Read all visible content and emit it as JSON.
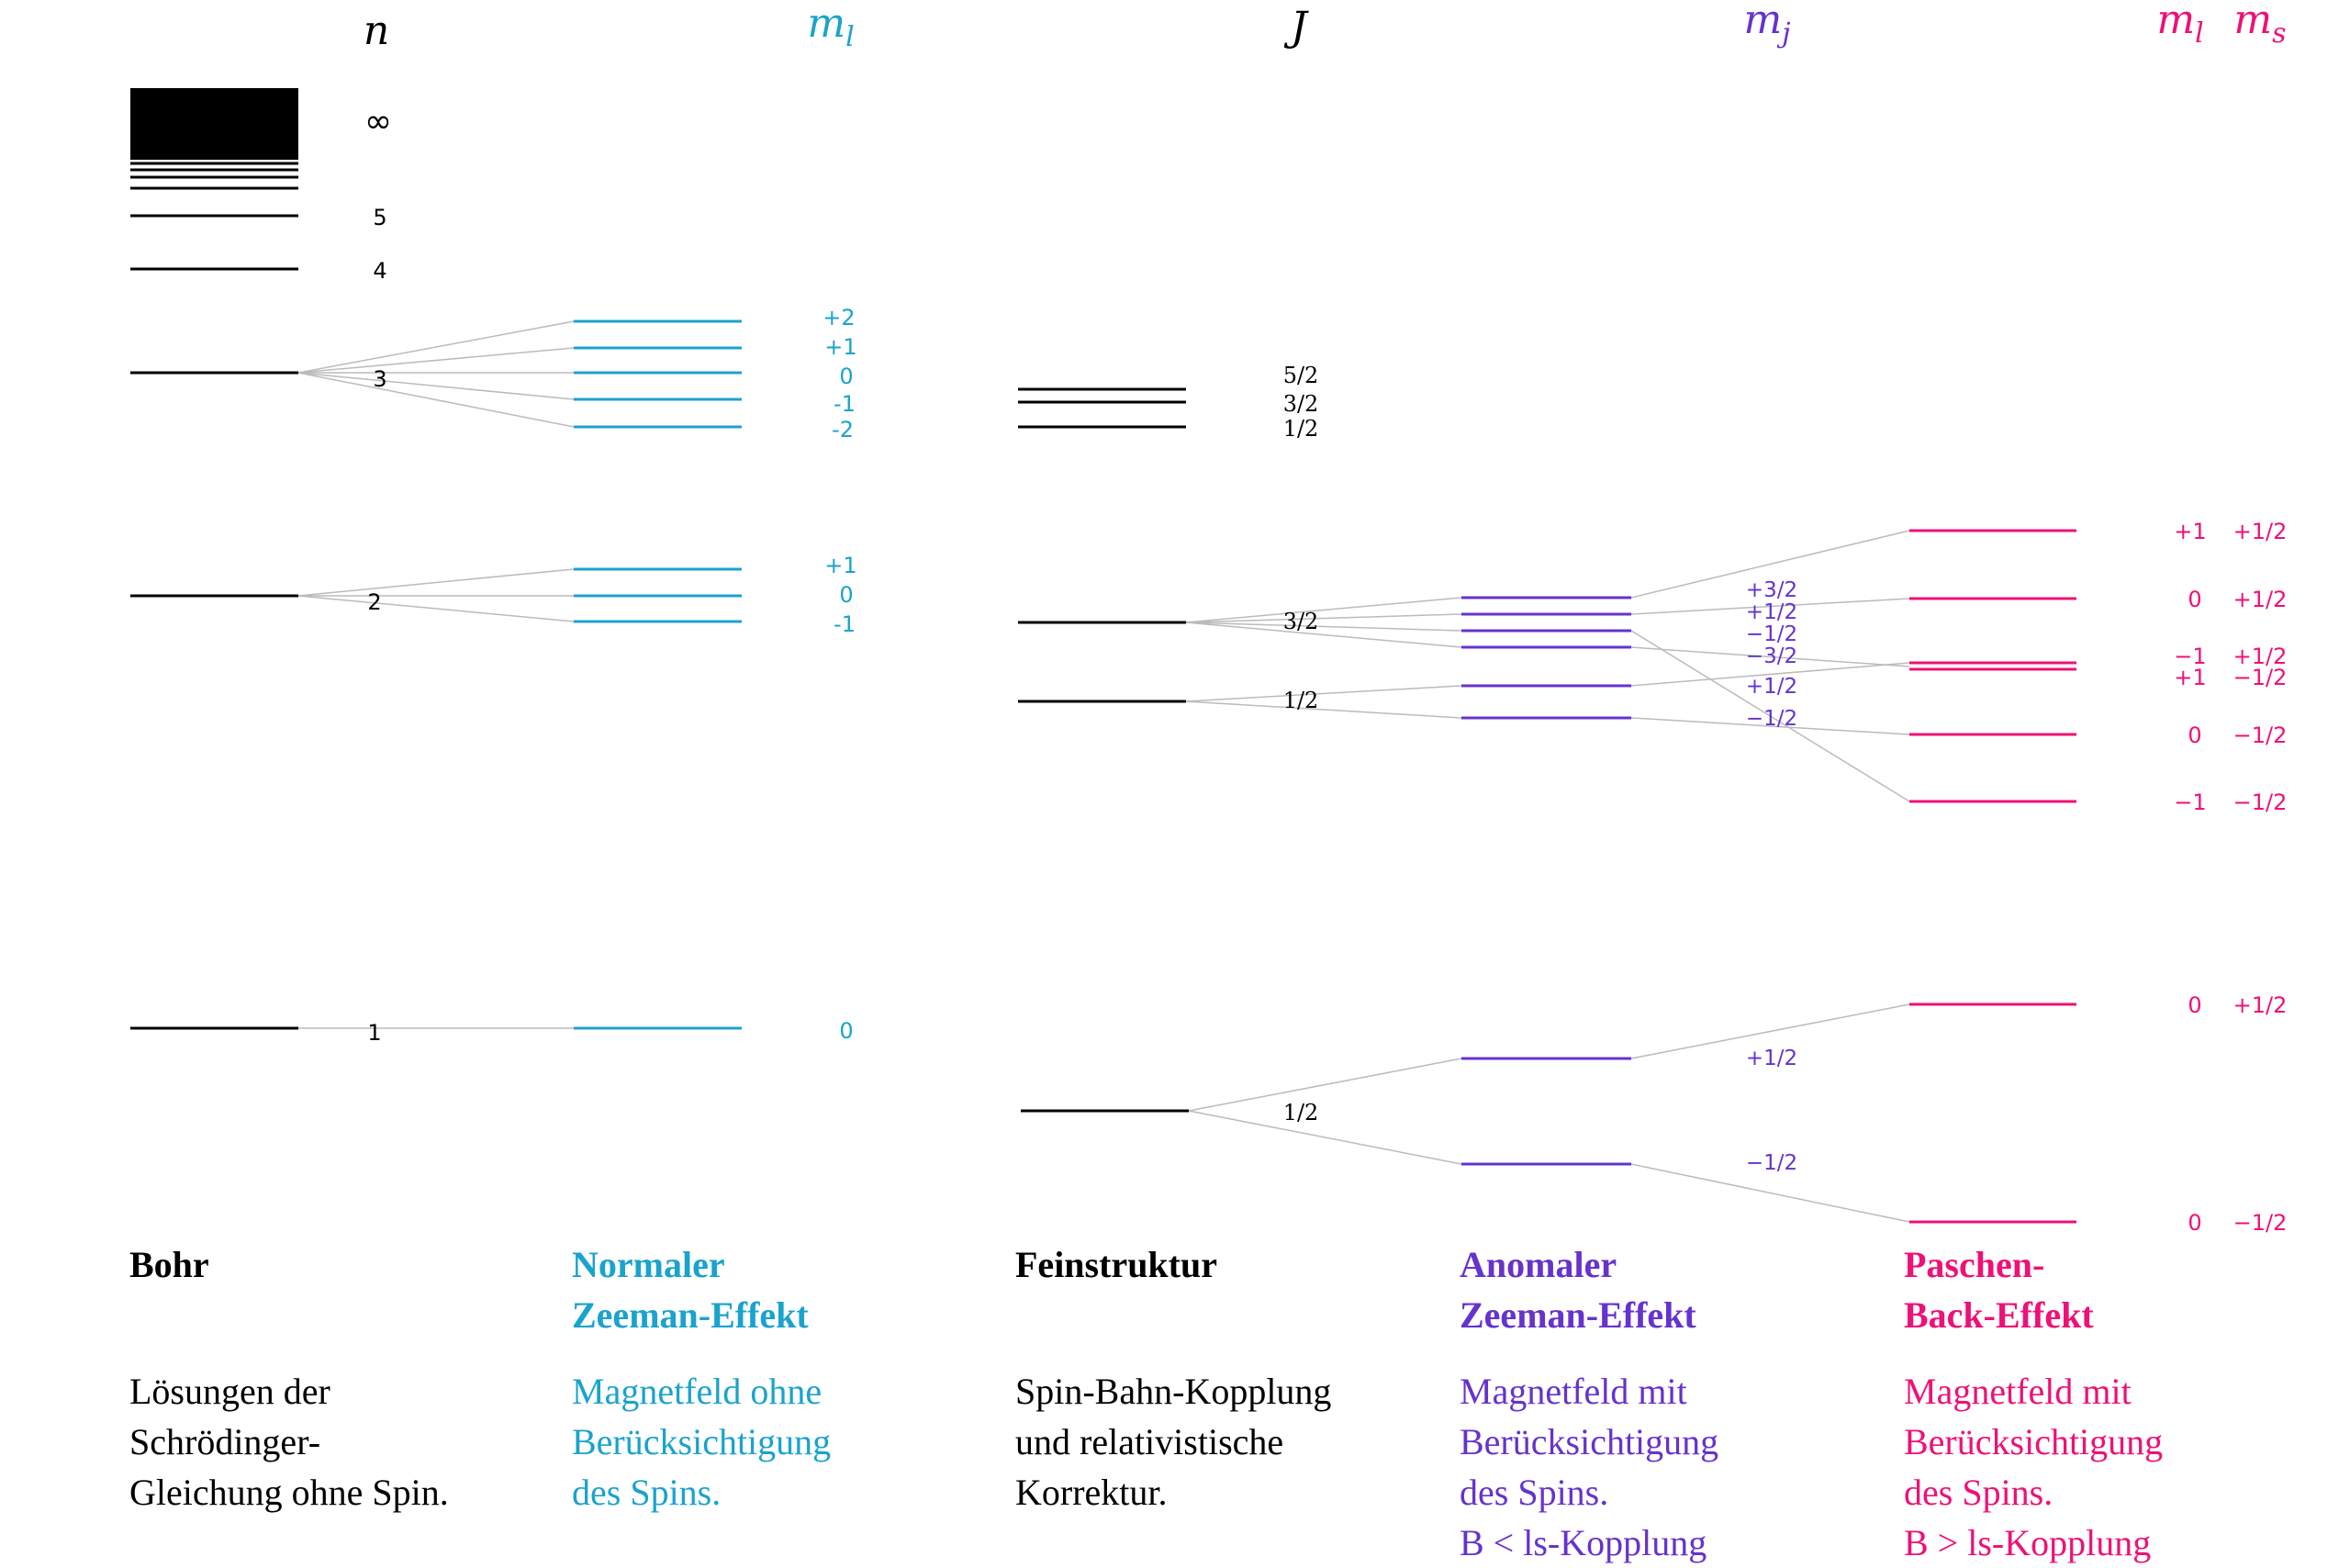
{
  "colors": {
    "bohr": "#000000",
    "normal_zeeman": "#1aa3cc",
    "fine_structure": "#000000",
    "anomalous_zeeman": "#6633cc",
    "paschen_back": "#ee1177",
    "connector": "#bbbbbb"
  },
  "headers": {
    "n": {
      "main": "n",
      "sub": ""
    },
    "ml": {
      "main": "m",
      "sub": "l"
    },
    "J": {
      "main": "J",
      "sub": ""
    },
    "mj": {
      "main": "m",
      "sub": "j"
    },
    "ml2": {
      "main": "m",
      "sub": "l"
    },
    "ms": {
      "main": "m",
      "sub": "s"
    }
  },
  "bohr_labels": {
    "inf": "∞",
    "n5": "5",
    "n4": "4",
    "n3": "3",
    "n2": "2",
    "n1": "1"
  },
  "normal_labels": {
    "n3": [
      "+2",
      "+1",
      "0",
      "-1",
      "-2"
    ],
    "n2": [
      "+1",
      "0",
      "-1"
    ],
    "n1": [
      "0"
    ]
  },
  "fine_labels": {
    "upper": [
      "5/2",
      "3/2",
      "1/2"
    ],
    "n2_high": "3/2",
    "n2_low": "1/2",
    "n1": "1/2"
  },
  "anomalous_labels": {
    "n2": [
      "+3/2",
      "+1/2",
      "−1/2",
      "−3/2",
      "+1/2",
      "−1/2"
    ],
    "n1": [
      "+1/2",
      "−1/2"
    ]
  },
  "paschen_labels": {
    "n2": [
      {
        "ml": "+1",
        "ms": "+1/2"
      },
      {
        "ml": "0",
        "ms": "+1/2"
      },
      {
        "ml": "−1",
        "ms": "+1/2"
      },
      {
        "ml": "+1",
        "ms": "−1/2"
      },
      {
        "ml": "0",
        "ms": "−1/2"
      },
      {
        "ml": "−1",
        "ms": "−1/2"
      }
    ],
    "n1": [
      {
        "ml": "0",
        "ms": "+1/2"
      },
      {
        "ml": "0",
        "ms": "−1/2"
      }
    ]
  },
  "captions": {
    "bohr": {
      "title": "Bohr",
      "desc": "Lösungen der\nSchrödinger-\nGleichung ohne Spin."
    },
    "normal_zeeman": {
      "title": "Normaler\nZeeman-Effekt",
      "desc": "Magnetfeld ohne\nBerücksichtigung\ndes Spins."
    },
    "fine_structure": {
      "title": "Feinstruktur",
      "desc": "Spin-Bahn-Kopplung\nund relativistische\nKorrektur."
    },
    "anomalous_zeeman": {
      "title": "Anomaler\nZeeman-Effekt",
      "desc": "Magnetfeld mit\nBerücksichtigung\ndes Spins.\nB < ls-Kopplung"
    },
    "paschen_back": {
      "title": "Paschen-\nBack-Effekt",
      "desc": "Magnetfeld mit\nBerücksichtigung\ndes Spins.\nB > ls-Kopplung"
    }
  }
}
